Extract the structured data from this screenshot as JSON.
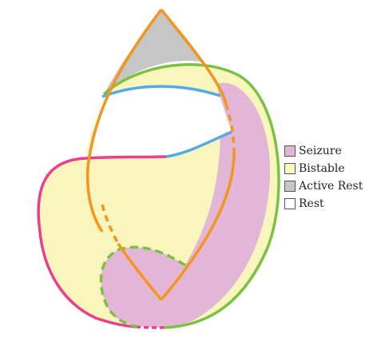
{
  "legend": [
    {
      "label": "Seizure",
      "color": "#e3b5d6"
    },
    {
      "label": "Bistable",
      "color": "#f8f5bd"
    },
    {
      "label": "Active Rest",
      "color": "#c6c6c6"
    },
    {
      "label": "Rest",
      "color": "#ffffff"
    }
  ],
  "colors": {
    "seizure": "#e3b5d6",
    "bistable": "#f8f5bd",
    "active_rest": "#c6c6c6",
    "rest": "#ffffff",
    "orange_curve": "#f3961f",
    "green_curve": "#7cc142",
    "magenta_curve": "#ee3d8e",
    "blue_curve": "#54aae6",
    "outline": "#555555"
  }
}
